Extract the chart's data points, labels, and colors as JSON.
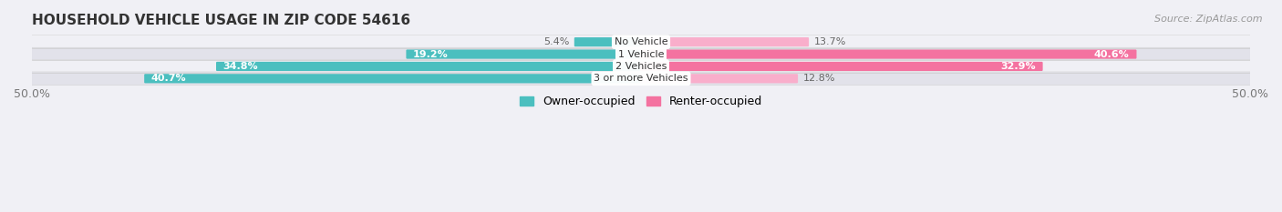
{
  "title": "HOUSEHOLD VEHICLE USAGE IN ZIP CODE 54616",
  "source": "Source: ZipAtlas.com",
  "categories": [
    "No Vehicle",
    "1 Vehicle",
    "2 Vehicles",
    "3 or more Vehicles"
  ],
  "owner_values": [
    5.4,
    19.2,
    34.8,
    40.7
  ],
  "renter_values": [
    13.7,
    40.6,
    32.9,
    12.8
  ],
  "owner_color": "#4BBFBF",
  "renter_color": "#F472A0",
  "renter_color_light": "#F9AECB",
  "owner_label": "Owner-occupied",
  "renter_label": "Renter-occupied",
  "xlim": [
    -50,
    50
  ],
  "bar_height": 0.6,
  "background_color": "#f0f0f5",
  "row_bg_even": "#f5f5f8",
  "row_bg_odd": "#e8e8ee",
  "title_fontsize": 11,
  "source_fontsize": 8,
  "label_fontsize": 8,
  "value_fontsize": 8
}
